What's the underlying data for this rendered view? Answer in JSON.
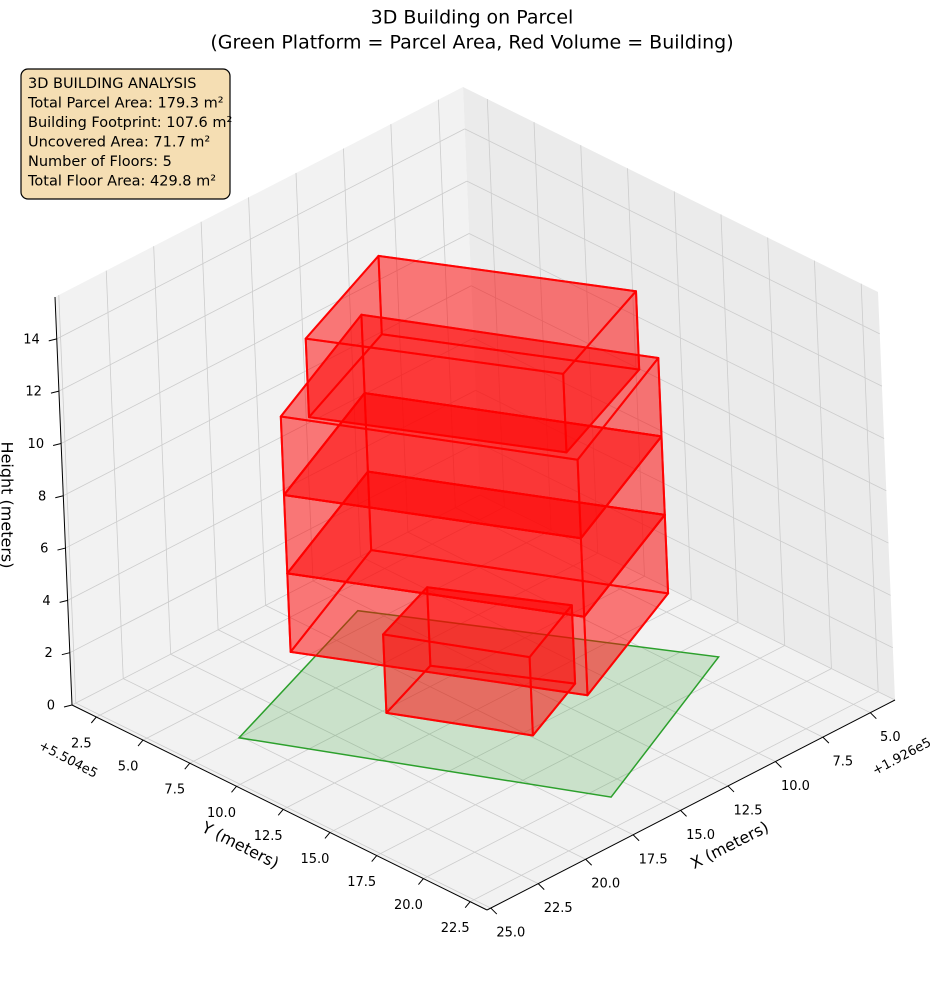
{
  "chart_data": {
    "type": "building3d",
    "title": "3D Building on Parcel",
    "subtitle": "(Green Platform = Parcel Area, Red Volume = Building)",
    "xlabel": "X (meters)",
    "ylabel": "Y (meters)",
    "zlabel": "Height (meters)",
    "x_offset": "+1.926e5",
    "y_offset": "+5.504e5",
    "xlim": [
      3.7,
      25.2
    ],
    "ylim": [
      1.2,
      23.4
    ],
    "zlim": [
      0,
      15.6
    ],
    "xticks": [
      {
        "value": 5,
        "label": "5.0"
      },
      7.5,
      {
        "value": 10,
        "label": "10.0"
      },
      12.5,
      {
        "value": 15,
        "label": "15.0"
      },
      17.5,
      {
        "value": 20,
        "label": "20.0"
      },
      22.5,
      {
        "value": 25,
        "label": "25.0"
      }
    ],
    "yticks": [
      2.5,
      {
        "value": 5,
        "label": "5.0"
      },
      7.5,
      {
        "value": 10,
        "label": "10.0"
      },
      12.5,
      {
        "value": 15,
        "label": "15.0"
      },
      17.5,
      {
        "value": 20,
        "label": "20.0"
      },
      22.5
    ],
    "zticks": [
      0,
      2,
      4,
      6,
      8,
      10,
      12,
      14
    ],
    "grid": true,
    "parcel": {
      "color": "#2ca02c",
      "x": [
        22.6,
        12.9,
        6.0,
        16.1
      ],
      "y": [
        7.5,
        4.0,
        16.3,
        20.8
      ]
    },
    "building_color": "#ff0000",
    "floors": [
      {
        "z": [
          0,
          3
        ],
        "x": [
          17.5,
          14.9,
          11.1,
          13.9
        ],
        "y": [
          10.2,
          15.4,
          13.8,
          8.9
        ]
      },
      {
        "z": [
          3,
          6
        ],
        "x": [
          20.8,
          15.4,
          8.0,
          13.4
        ],
        "y": [
          8.6,
          19.0,
          15.8,
          5.4
        ]
      },
      {
        "z": [
          6,
          9
        ],
        "x": [
          20.8,
          15.4,
          8.0,
          13.4
        ],
        "y": [
          8.6,
          19.0,
          15.8,
          5.4
        ]
      },
      {
        "z": [
          9,
          12
        ],
        "x": [
          20.8,
          15.4,
          8.0,
          13.4
        ],
        "y": [
          8.6,
          19.0,
          15.8,
          5.4
        ]
      },
      {
        "z": [
          12,
          15
        ],
        "x": [
          20.1,
          15.3,
          9.1,
          13.9
        ],
        "y": [
          9.4,
          18.3,
          15.9,
          7.0
        ]
      }
    ],
    "info": {
      "lines": [
        "3D BUILDING ANALYSIS",
        "Total Parcel Area: 179.3 m²",
        "Building Footprint: 107.6 m²",
        "Uncovered Area: 71.7 m²",
        "Number of Floors: 5",
        "Total Floor Area: 429.8 m²"
      ]
    }
  }
}
